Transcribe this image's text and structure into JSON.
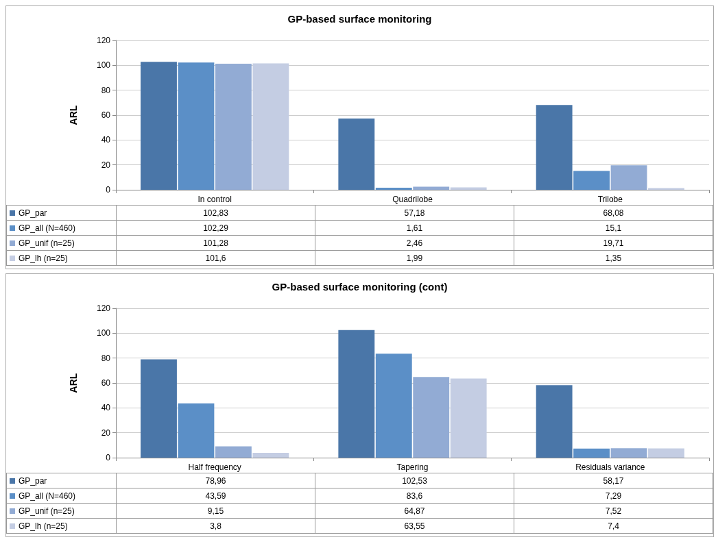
{
  "chart_data": [
    {
      "type": "bar",
      "title": "GP-based surface monitoring",
      "ylabel": "ARL",
      "categories": [
        "In control",
        "Quadrilobe",
        "Trilobe"
      ],
      "ylim": [
        0,
        120
      ],
      "yticks": [
        0,
        20,
        40,
        60,
        80,
        100,
        120
      ],
      "grid": "y",
      "legend": "bottom",
      "series": [
        {
          "name": "GP_par",
          "color": "#4a76a8",
          "values": [
            102.83,
            57.18,
            68.08
          ],
          "value_labels": [
            "102,83",
            "57,18",
            "68,08"
          ]
        },
        {
          "name": "GP_all (N=460)",
          "color": "#5b8fc7",
          "values": [
            102.29,
            1.61,
            15.1
          ],
          "value_labels": [
            "102,29",
            "1,61",
            "15,1"
          ]
        },
        {
          "name": "GP_unif (n=25)",
          "color": "#92abd4",
          "values": [
            101.28,
            2.46,
            19.71
          ],
          "value_labels": [
            "101,28",
            "2,46",
            "19,71"
          ]
        },
        {
          "name": "GP_lh (n=25)",
          "color": "#c4cde3",
          "values": [
            101.6,
            1.99,
            1.35
          ],
          "value_labels": [
            "101,6",
            "1,99",
            "1,35"
          ]
        }
      ]
    },
    {
      "type": "bar",
      "title": "GP-based surface monitoring (cont)",
      "ylabel": "ARL",
      "categories": [
        "Half frequency",
        "Tapering",
        "Residuals variance"
      ],
      "ylim": [
        0,
        120
      ],
      "yticks": [
        0,
        20,
        40,
        60,
        80,
        100,
        120
      ],
      "grid": "y",
      "legend": "bottom",
      "series": [
        {
          "name": "GP_par",
          "color": "#4a76a8",
          "values": [
            78.96,
            102.53,
            58.17
          ],
          "value_labels": [
            "78,96",
            "102,53",
            "58,17"
          ]
        },
        {
          "name": "GP_all (N=460)",
          "color": "#5b8fc7",
          "values": [
            43.59,
            83.6,
            7.29
          ],
          "value_labels": [
            "43,59",
            "83,6",
            "7,29"
          ]
        },
        {
          "name": "GP_unif (n=25)",
          "color": "#92abd4",
          "values": [
            9.15,
            64.87,
            7.52
          ],
          "value_labels": [
            "9,15",
            "64,87",
            "7,52"
          ]
        },
        {
          "name": "GP_lh (n=25)",
          "color": "#c4cde3",
          "values": [
            3.8,
            63.55,
            7.4
          ],
          "value_labels": [
            "3,8",
            "63,55",
            "7,4"
          ]
        }
      ]
    }
  ]
}
